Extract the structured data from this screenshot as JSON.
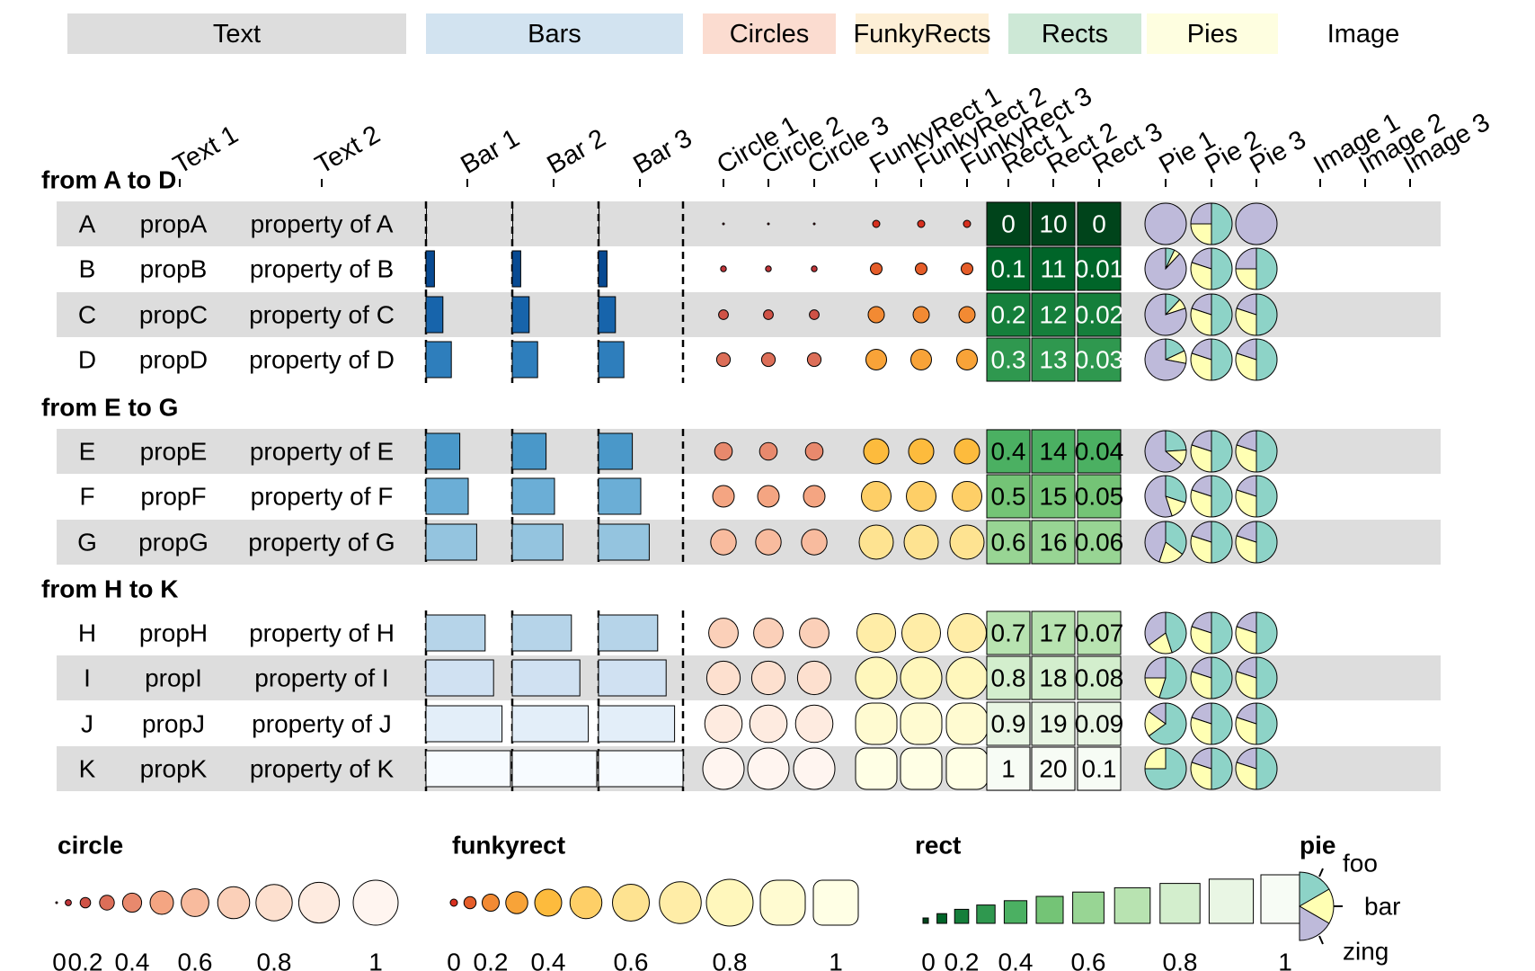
{
  "chart_data": {
    "type": "funkyheatmap",
    "column_groups": [
      {
        "name": "Text",
        "color": "#dddddd"
      },
      {
        "name": "Bars",
        "color": "#d2e3f0"
      },
      {
        "name": "Circles",
        "color": "#fbdcd0"
      },
      {
        "name": "FunkyRects",
        "color": "#fdefd6"
      },
      {
        "name": "Rects",
        "color": "#cde8d6"
      },
      {
        "name": "Pies",
        "color": "#fefee0"
      },
      {
        "name": "Image",
        "color": "#ffffff"
      }
    ],
    "column_labels": {
      "text": [
        "Text 1",
        "Text 2"
      ],
      "bar": [
        "Bar 1",
        "Bar 2",
        "Bar 3"
      ],
      "circle": [
        "Circle 1",
        "Circle 2",
        "Circle 3"
      ],
      "funkyrect": [
        "FunkyRect 1",
        "FunkyRect 2",
        "FunkyRect 3"
      ],
      "rect": [
        "Rect 1",
        "Rect 2",
        "Rect 3"
      ],
      "pie": [
        "Pie 1",
        "Pie 2",
        "Pie 3"
      ],
      "image": [
        "Image 1",
        "Image 2",
        "Image 3"
      ]
    },
    "row_groups": [
      "from A to D",
      "from E to G",
      "from H to K"
    ],
    "rows": [
      {
        "id": "A",
        "group": 0,
        "text1": "propA",
        "text2": "property of A",
        "value": 0.0,
        "rect_labels": [
          "0",
          "10",
          "0"
        ],
        "pies": [
          [
            0.0,
            0.0,
            1.0
          ],
          [
            0.5,
            0.25,
            0.25
          ],
          [
            0.0,
            0.0,
            1.0
          ]
        ]
      },
      {
        "id": "B",
        "group": 0,
        "text1": "propB",
        "text2": "property of B",
        "value": 0.1,
        "rect_labels": [
          "0.1",
          "11",
          "0.01"
        ],
        "pies": [
          [
            0.07,
            0.05,
            0.88
          ],
          [
            0.5,
            0.3,
            0.2
          ],
          [
            0.5,
            0.25,
            0.25
          ]
        ]
      },
      {
        "id": "C",
        "group": 0,
        "text1": "propC",
        "text2": "property of C",
        "value": 0.2,
        "rect_labels": [
          "0.2",
          "12",
          "0.02"
        ],
        "pies": [
          [
            0.12,
            0.08,
            0.8
          ],
          [
            0.5,
            0.3,
            0.2
          ],
          [
            0.5,
            0.3,
            0.2
          ]
        ]
      },
      {
        "id": "D",
        "group": 0,
        "text1": "propD",
        "text2": "property of D",
        "value": 0.3,
        "rect_labels": [
          "0.3",
          "13",
          "0.03"
        ],
        "pies": [
          [
            0.18,
            0.1,
            0.72
          ],
          [
            0.5,
            0.3,
            0.2
          ],
          [
            0.5,
            0.3,
            0.2
          ]
        ]
      },
      {
        "id": "E",
        "group": 1,
        "text1": "propE",
        "text2": "property of E",
        "value": 0.4,
        "rect_labels": [
          "0.4",
          "14",
          "0.04"
        ],
        "pies": [
          [
            0.24,
            0.12,
            0.64
          ],
          [
            0.5,
            0.3,
            0.2
          ],
          [
            0.5,
            0.3,
            0.2
          ]
        ]
      },
      {
        "id": "F",
        "group": 1,
        "text1": "propF",
        "text2": "property of F",
        "value": 0.5,
        "rect_labels": [
          "0.5",
          "15",
          "0.05"
        ],
        "pies": [
          [
            0.3,
            0.15,
            0.55
          ],
          [
            0.5,
            0.3,
            0.2
          ],
          [
            0.5,
            0.3,
            0.2
          ]
        ]
      },
      {
        "id": "G",
        "group": 1,
        "text1": "propG",
        "text2": "property of G",
        "value": 0.6,
        "rect_labels": [
          "0.6",
          "16",
          "0.06"
        ],
        "pies": [
          [
            0.35,
            0.2,
            0.45
          ],
          [
            0.5,
            0.3,
            0.2
          ],
          [
            0.5,
            0.3,
            0.2
          ]
        ]
      },
      {
        "id": "H",
        "group": 2,
        "text1": "propH",
        "text2": "property of H",
        "value": 0.7,
        "rect_labels": [
          "0.7",
          "17",
          "0.07"
        ],
        "pies": [
          [
            0.45,
            0.2,
            0.35
          ],
          [
            0.5,
            0.3,
            0.2
          ],
          [
            0.5,
            0.3,
            0.2
          ]
        ]
      },
      {
        "id": "I",
        "group": 2,
        "text1": "propI",
        "text2": "property of I",
        "value": 0.8,
        "rect_labels": [
          "0.8",
          "18",
          "0.08"
        ],
        "pies": [
          [
            0.55,
            0.2,
            0.25
          ],
          [
            0.5,
            0.3,
            0.2
          ],
          [
            0.5,
            0.3,
            0.2
          ]
        ]
      },
      {
        "id": "J",
        "group": 2,
        "text1": "propJ",
        "text2": "property of J",
        "value": 0.9,
        "rect_labels": [
          "0.9",
          "19",
          "0.09"
        ],
        "pies": [
          [
            0.65,
            0.2,
            0.15
          ],
          [
            0.5,
            0.3,
            0.2
          ],
          [
            0.5,
            0.3,
            0.2
          ]
        ]
      },
      {
        "id": "K",
        "group": 2,
        "text1": "propK",
        "text2": "property of K",
        "value": 1.0,
        "rect_labels": [
          "1",
          "20",
          "0.1"
        ],
        "pies": [
          [
            0.75,
            0.25,
            0.0
          ],
          [
            0.5,
            0.3,
            0.2
          ],
          [
            0.5,
            0.3,
            0.2
          ]
        ]
      }
    ],
    "palettes": {
      "bar": [
        "#08306b",
        "#08519c",
        "#2171b5",
        "#4292c6",
        "#6baed6",
        "#9ecae1",
        "#c6dbef",
        "#deebf7",
        "#f7fbff"
      ],
      "circle": [
        "#b2182b",
        "#d6604d",
        "#f4a582",
        "#fddbc7",
        "#fff5f0"
      ],
      "funkyrect": [
        "#d7301f",
        "#f28a33",
        "#fdbb3d",
        "#fee391",
        "#fff7bc",
        "#ffffe5"
      ],
      "rect": [
        "#00441b",
        "#006d2c",
        "#238b45",
        "#41ab5d",
        "#74c476",
        "#a1d99b",
        "#c7e9c0",
        "#e5f5e0",
        "#f7fcf5"
      ],
      "pie": {
        "foo": "#8dd3c7",
        "bar": "#ffffb3",
        "zing": "#bebada"
      }
    },
    "legends": {
      "circle": {
        "title": "circle",
        "ticks": [
          "0",
          "0.2",
          "0.4",
          "0.6",
          "0.8",
          "1"
        ]
      },
      "funkyrect": {
        "title": "funkyrect",
        "ticks": [
          "0",
          "0.2",
          "0.4",
          "0.6",
          "0.8",
          "1"
        ]
      },
      "rect": {
        "title": "rect",
        "ticks": [
          "0",
          "0.2",
          "0.4",
          "0.6",
          "0.8",
          "1"
        ]
      },
      "pie": {
        "title": "pie",
        "categories": [
          "foo",
          "bar",
          "zing"
        ]
      }
    }
  }
}
